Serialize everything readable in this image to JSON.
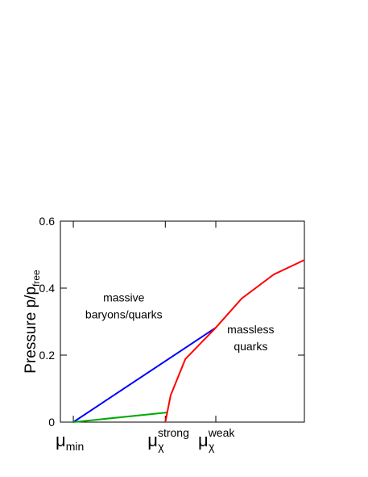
{
  "chart_data": {
    "type": "line",
    "ylabel": {
      "text": "Pressure p/p",
      "sub": "free"
    },
    "xlim": [
      0,
      1
    ],
    "ylim": [
      0,
      0.6
    ],
    "yticks": [
      0,
      0.2,
      0.4,
      0.6
    ],
    "xticks": [
      {
        "value": 0.053,
        "label": "μ",
        "sub": "min"
      },
      {
        "value": 0.43,
        "label": "μ",
        "sub": "χ",
        "sup": "strong"
      },
      {
        "value": 0.637,
        "label": "μ",
        "sub": "χ",
        "sup": "weak"
      }
    ],
    "series": [
      {
        "color": "#0000ff",
        "x": [
          0.053,
          0.637
        ],
        "values": [
          0,
          0.282
        ]
      },
      {
        "color": "#00aa00",
        "x": [
          0.053,
          0.44
        ],
        "values": [
          0,
          0.029
        ]
      },
      {
        "color": "#ff0000",
        "x": [
          0.43,
          0.452,
          0.512,
          0.637,
          0.743,
          0.875,
          1
        ],
        "values": [
          0,
          0.08,
          0.188,
          0.282,
          0.369,
          0.441,
          0.484
        ]
      }
    ],
    "annotations": [
      {
        "lines": [
          "massive",
          "baryons/quarks"
        ],
        "x": 0.26,
        "y": 0.36
      },
      {
        "lines": [
          "massless",
          "quarks"
        ],
        "x": 0.78,
        "y": 0.265
      }
    ]
  }
}
